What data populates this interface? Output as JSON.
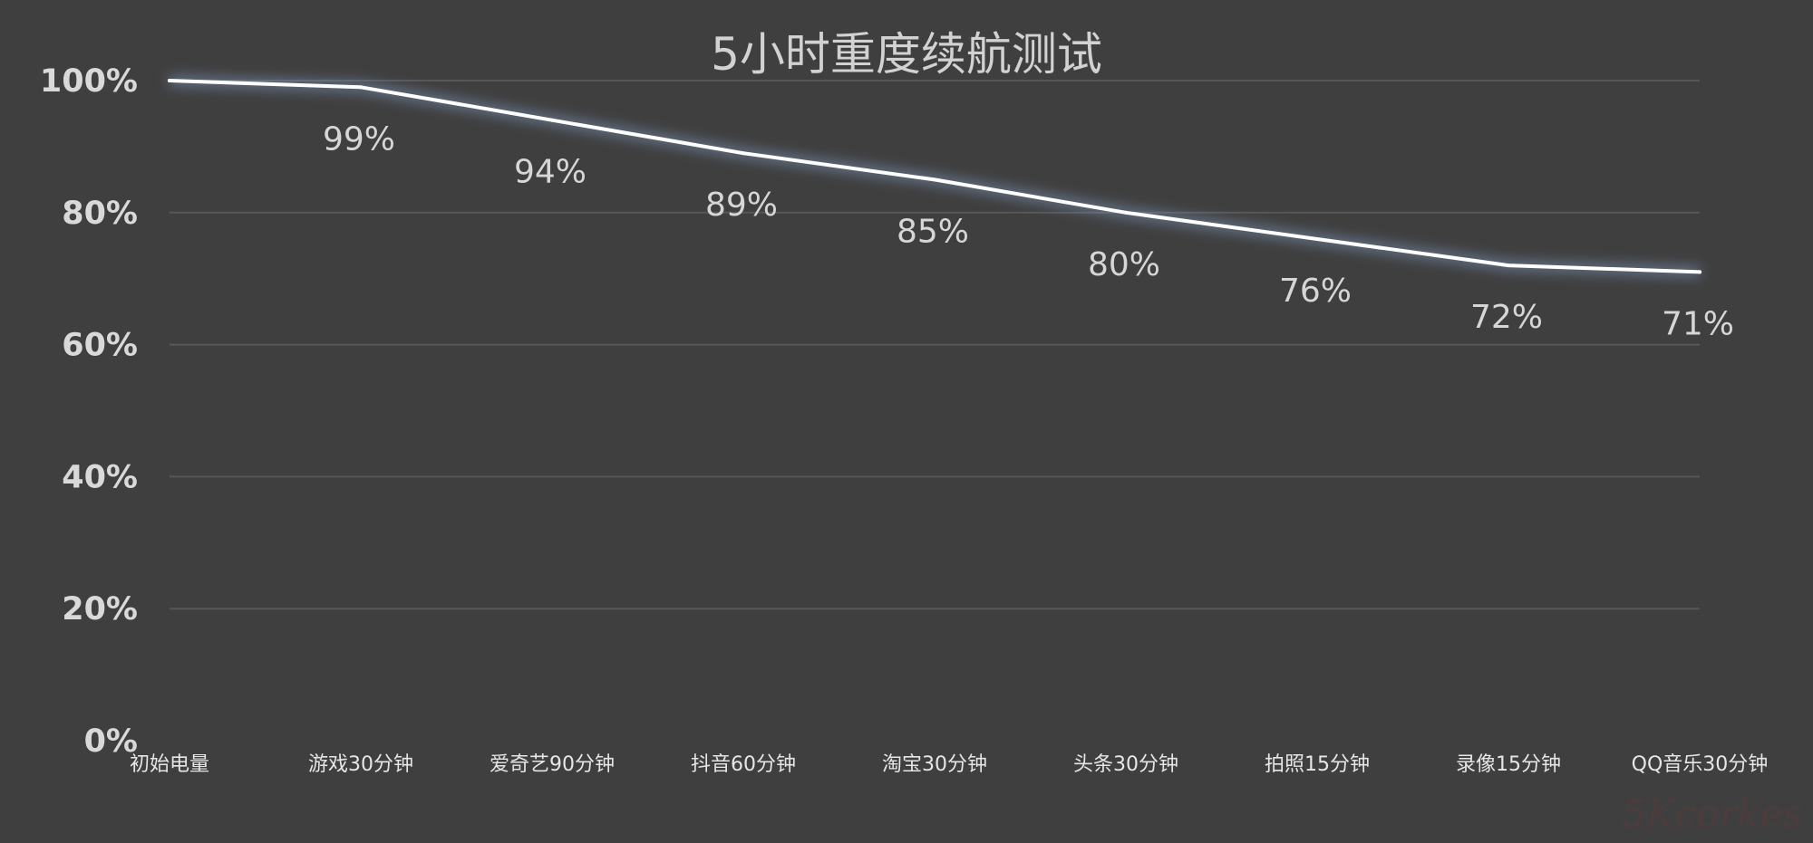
{
  "chart_data": {
    "type": "line",
    "title": "5小时重度续航测试",
    "xlabel": "",
    "ylabel": "",
    "categories": [
      "初始电量",
      "游戏30分钟",
      "爱奇艺90分钟",
      "抖音60分钟",
      "淘宝30分钟",
      "头条30分钟",
      "拍照15分钟",
      "录像15分钟",
      "QQ音乐30分钟"
    ],
    "series": [
      {
        "values": [
          100,
          99,
          94,
          89,
          85,
          80,
          76,
          72,
          71
        ],
        "data_labels": [
          "",
          "99%",
          "94%",
          "89%",
          "85%",
          "80%",
          "76%",
          "72%",
          "71%"
        ]
      }
    ],
    "yticks": [
      0,
      20,
      40,
      60,
      80,
      100
    ],
    "ytick_labels": [
      "0%",
      "20%",
      "40%",
      "60%",
      "80%",
      "100%"
    ],
    "ylim": [
      0,
      100
    ],
    "grid": true,
    "legend": "none",
    "colors": {
      "background": "#3f3f3f",
      "line": "#ffffff",
      "glow": "#8fb0e0",
      "grid": "#575757"
    }
  },
  "watermark": "5Kcorkes"
}
